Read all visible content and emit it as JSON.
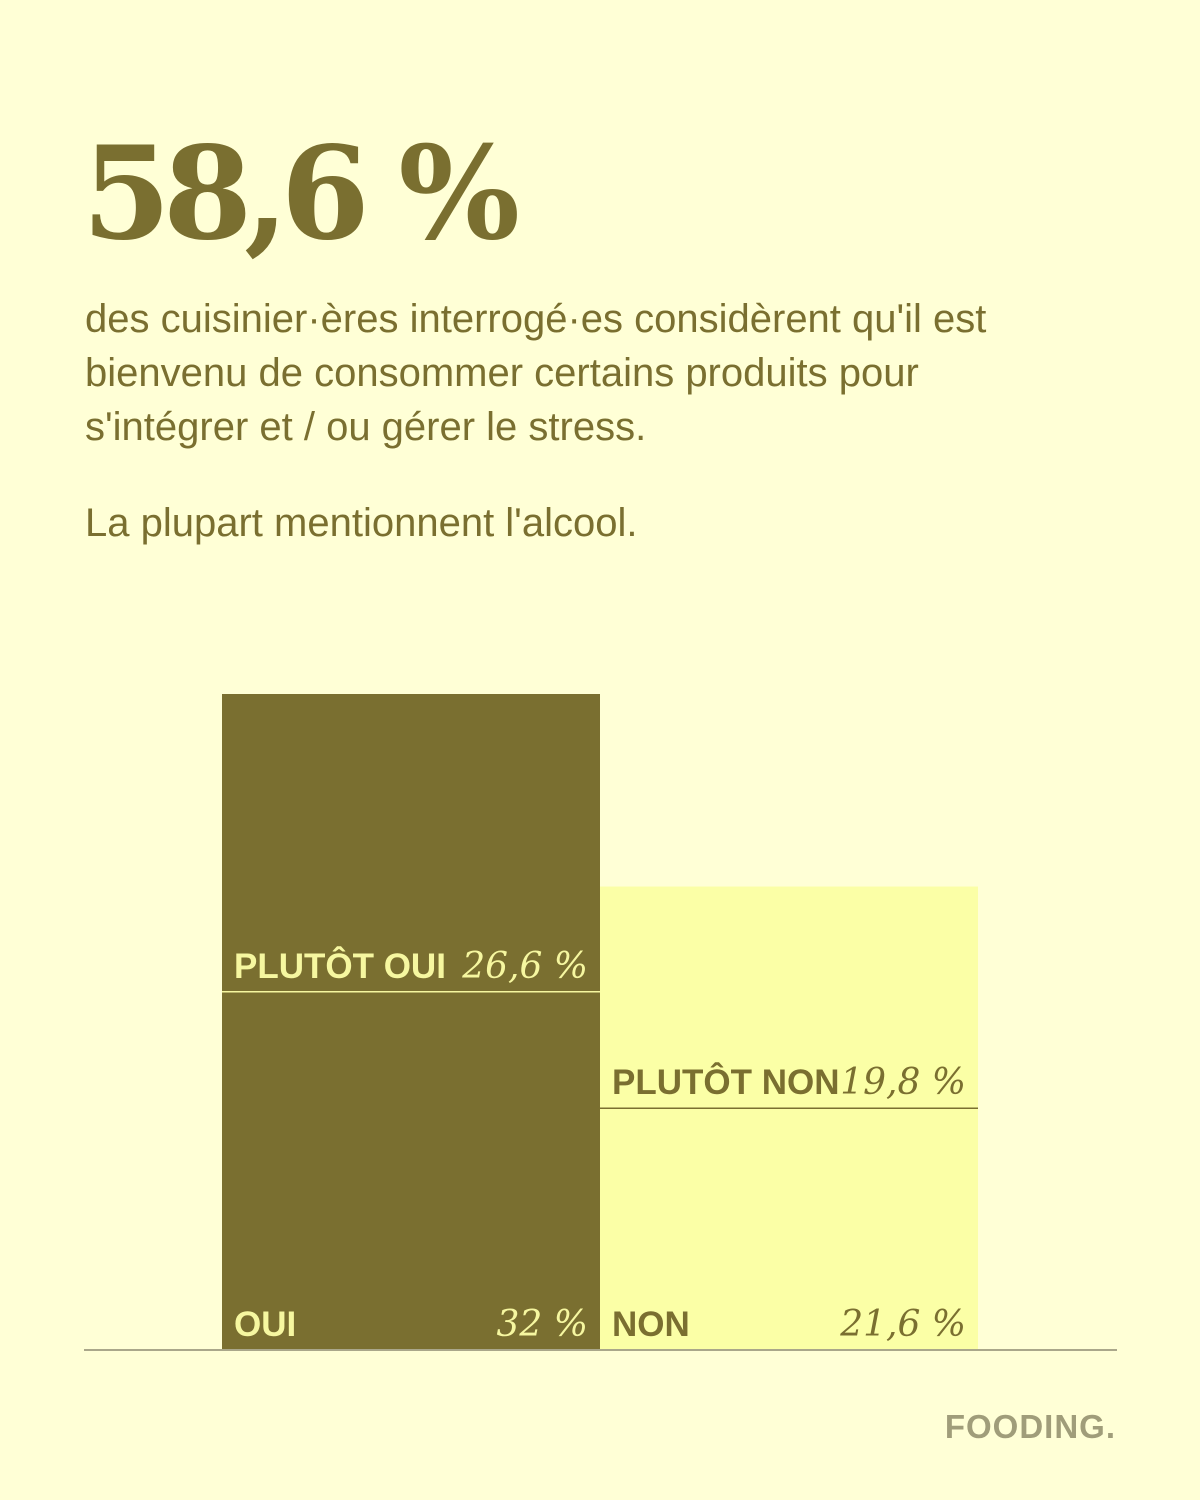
{
  "headline": {
    "value": "58,6 %"
  },
  "subtitle": "des cuisinier·ères interrogé·es considèrent qu'il est bienvenu de consommer certains produits pour s'intégrer et / ou gérer le stress.",
  "note": "La plupart mentionnent l'alcool.",
  "brand": "FOODING.",
  "colors": {
    "background": "#ffffd6",
    "dark_olive": "#7a6f30",
    "light_yellow": "#fbffa6",
    "label_on_dark": "#f6f7a0",
    "label_on_light": "#7a6f30",
    "brand": "#a09d7a"
  },
  "chart_data": {
    "type": "bar",
    "stacked": true,
    "unit": "%",
    "categories": [
      "Oui",
      "Non"
    ],
    "series": [
      {
        "name": "OUI",
        "values": [
          32,
          0
        ],
        "value_label": "32 %"
      },
      {
        "name": "PLUTÔT OUI",
        "values": [
          26.6,
          0
        ],
        "value_label": "26,6 %"
      },
      {
        "name": "NON",
        "values": [
          0,
          21.6
        ],
        "value_label": "21,6 %"
      },
      {
        "name": "PLUTÔT NON",
        "values": [
          0,
          19.8
        ],
        "value_label": "19,8 %"
      }
    ],
    "segments": [
      {
        "label": "OUI",
        "value": 32,
        "value_label": "32 %",
        "column": 0,
        "stack": 0,
        "color": "#7a6f30",
        "text_color": "#f6f7a0"
      },
      {
        "label": "PLUTÔT OUI",
        "value": 26.6,
        "value_label": "26,6 %",
        "column": 0,
        "stack": 1,
        "color": "#7a6f30",
        "text_color": "#f6f7a0"
      },
      {
        "label": "NON",
        "value": 21.6,
        "value_label": "21,6 %",
        "column": 1,
        "stack": 0,
        "color": "#fbffa6",
        "text_color": "#7a6f30"
      },
      {
        "label": "PLUTÔT NON",
        "value": 19.8,
        "value_label": "19,8 %",
        "column": 1,
        "stack": 1,
        "color": "#fbffa6",
        "text_color": "#7a6f30"
      }
    ],
    "ylim": [
      0,
      58.6
    ],
    "grid": false,
    "legend": "none"
  }
}
